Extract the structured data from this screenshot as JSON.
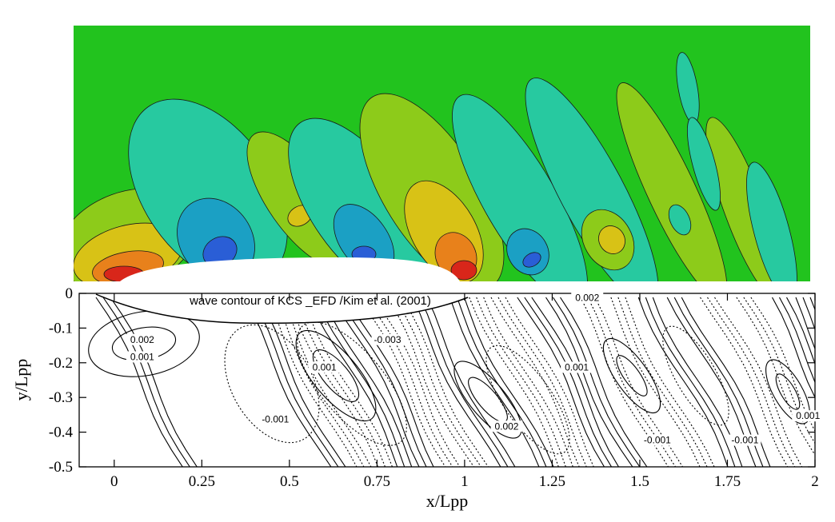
{
  "chart_data": [
    {
      "type": "heatmap",
      "title": "",
      "background_color": "#22c31e",
      "palette": [
        "#2a5ed6",
        "#1ba0c4",
        "#27c9a0",
        "#22c31e",
        "#8dcb1a",
        "#d8c216",
        "#e8811b",
        "#d8261a"
      ],
      "note_colors": "blue = trough, green = still level, red = crest"
    },
    {
      "type": "contour",
      "xlabel": "x/Lpp",
      "ylabel": "y/Lpp",
      "xlim": [
        -0.1,
        2.0
      ],
      "ylim": [
        -0.5,
        0.0
      ],
      "xticks": [
        0,
        0.25,
        0.5,
        0.75,
        1,
        1.25,
        1.5,
        1.75,
        2
      ],
      "xtick_labels": [
        "0",
        "0.25",
        "0.5",
        "0.75",
        "1",
        "1.25",
        "1.5",
        "1.75",
        "2"
      ],
      "yticks": [
        0,
        -0.1,
        -0.2,
        -0.3,
        -0.4,
        -0.5
      ],
      "ytick_labels": [
        "0",
        "-0.1",
        "-0.2",
        "-0.3",
        "-0.4",
        "-0.5"
      ],
      "legend": {
        "text": "wave contour of KCS _EFD /Kim et al. (2001)",
        "placement": "top-center"
      },
      "contour_labels": [
        {
          "text": "0.002",
          "x": 0.08,
          "y": -0.14
        },
        {
          "text": "0.001",
          "x": 0.08,
          "y": -0.19
        },
        {
          "text": "-0.001",
          "x": 0.46,
          "y": -0.37
        },
        {
          "text": "0.001",
          "x": 0.6,
          "y": -0.22
        },
        {
          "text": "-0.003",
          "x": 0.78,
          "y": -0.14
        },
        {
          "text": "0.002",
          "x": 1.12,
          "y": -0.39
        },
        {
          "text": "0.001",
          "x": 1.32,
          "y": -0.22
        },
        {
          "text": "-0.001",
          "x": 1.55,
          "y": -0.43
        },
        {
          "text": "-0.001",
          "x": 1.8,
          "y": -0.43
        },
        {
          "text": "0.001",
          "x": 1.98,
          "y": -0.36
        },
        {
          "text": "0.002",
          "x": 1.35,
          "y": -0.02
        }
      ]
    }
  ]
}
